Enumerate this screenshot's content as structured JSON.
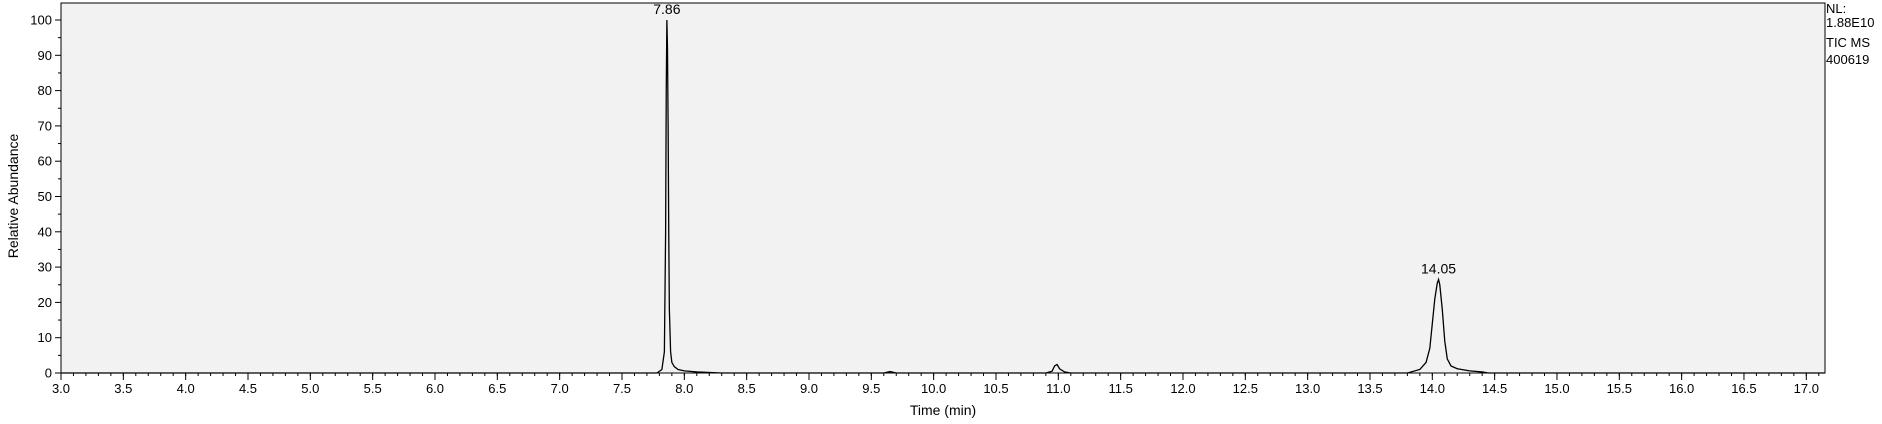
{
  "chart_data": {
    "type": "line",
    "xlabel": "Time (min)",
    "ylabel": "Relative Abundance",
    "xlim": [
      3.0,
      17.15
    ],
    "ylim": [
      0,
      100
    ],
    "x_ticks": [
      3.0,
      3.5,
      4.0,
      4.5,
      5.0,
      5.5,
      6.0,
      6.5,
      7.0,
      7.5,
      8.0,
      8.5,
      9.0,
      9.5,
      10.0,
      10.5,
      11.0,
      11.5,
      12.0,
      12.5,
      13.0,
      13.5,
      14.0,
      14.5,
      15.0,
      15.5,
      16.0,
      16.5,
      17.0
    ],
    "x_tick_labels": [
      "3.0",
      "3.5",
      "4.0",
      "4.5",
      "5.0",
      "5.5",
      "6.0",
      "6.5",
      "7.0",
      "7.5",
      "8.0",
      "8.5",
      "9.0",
      "9.5",
      "10.0",
      "10.5",
      "11.0",
      "11.5",
      "12.0",
      "12.5",
      "13.0",
      "13.5",
      "14.0",
      "14.5",
      "15.0",
      "15.5",
      "16.0",
      "16.5",
      "17.0"
    ],
    "y_ticks": [
      0,
      10,
      20,
      30,
      40,
      50,
      60,
      70,
      80,
      90,
      100
    ],
    "y_tick_labels": [
      "0",
      "10",
      "20",
      "30",
      "40",
      "50",
      "60",
      "70",
      "80",
      "90",
      "100"
    ],
    "grid": false,
    "line_color": "#000000",
    "plot_background": "#f2f2f2",
    "peak_labels": [
      {
        "x": 7.86,
        "y": 100,
        "text": "7.86"
      },
      {
        "x": 14.05,
        "y": 26.5,
        "text": "14.05"
      }
    ],
    "series": [
      {
        "x": [
          3.0,
          7.78,
          7.82,
          7.84,
          7.85,
          7.855,
          7.86,
          7.865,
          7.87,
          7.875,
          7.88,
          7.89,
          7.9,
          7.92,
          7.95,
          8.0,
          8.1,
          8.3,
          9.6,
          9.65,
          9.7,
          10.9,
          10.95,
          10.97,
          10.99,
          11.01,
          11.05,
          11.1,
          13.8,
          13.9,
          13.95,
          13.98,
          14.0,
          14.02,
          14.04,
          14.05,
          14.06,
          14.08,
          14.1,
          14.12,
          14.15,
          14.2,
          14.3,
          14.4,
          14.45,
          17.15
        ],
        "y": [
          0,
          0,
          1,
          6,
          40,
          80,
          100,
          92,
          70,
          40,
          18,
          6,
          3,
          1.8,
          1.0,
          0.6,
          0.3,
          0,
          0,
          0.4,
          0,
          0,
          0.5,
          2.0,
          2.4,
          1.2,
          0.3,
          0,
          0,
          1,
          3,
          7,
          14,
          21,
          25.5,
          26.5,
          25,
          18,
          9,
          4,
          2.0,
          1.2,
          0.6,
          0.3,
          0,
          0
        ]
      }
    ]
  },
  "info": {
    "nl_label": "NL:",
    "nl_value": "1.88E10",
    "scan": "TIC  MS",
    "sample": "400619"
  }
}
